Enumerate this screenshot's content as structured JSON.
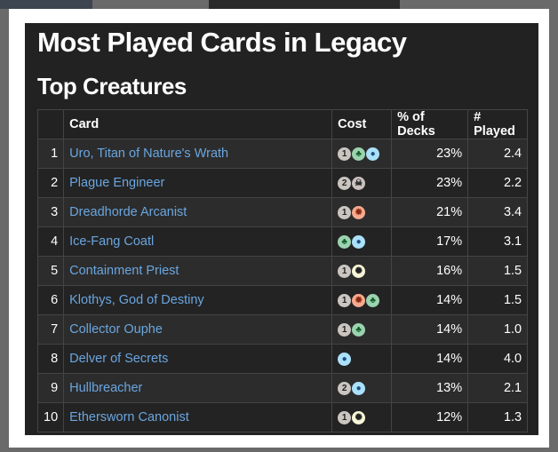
{
  "title": "Most Played Cards in Legacy",
  "subtitle": "Top Creatures",
  "headers": {
    "rank": "",
    "card": "Card",
    "cost": "Cost",
    "pct": "% of Decks",
    "played": "# Played"
  },
  "mana_colors": {
    "generic": "#cac5c0",
    "G": "#9bd3ae",
    "U": "#aae0fa",
    "R": "#f9aa8f",
    "W": "#f8f6d8",
    "B": "#cbc2bf"
  },
  "rows": [
    {
      "rank": "1",
      "card": "Uro, Titan of Nature's Wrath",
      "cost": [
        "1",
        "G",
        "U"
      ],
      "pct": "23%",
      "played": "2.4"
    },
    {
      "rank": "2",
      "card": "Plague Engineer",
      "cost": [
        "2",
        "B"
      ],
      "pct": "23%",
      "played": "2.2"
    },
    {
      "rank": "3",
      "card": "Dreadhorde Arcanist",
      "cost": [
        "1",
        "R"
      ],
      "pct": "21%",
      "played": "3.4"
    },
    {
      "rank": "4",
      "card": "Ice-Fang Coatl",
      "cost": [
        "G",
        "U"
      ],
      "pct": "17%",
      "played": "3.1"
    },
    {
      "rank": "5",
      "card": "Containment Priest",
      "cost": [
        "1",
        "W"
      ],
      "pct": "16%",
      "played": "1.5"
    },
    {
      "rank": "6",
      "card": "Klothys, God of Destiny",
      "cost": [
        "1",
        "R",
        "G"
      ],
      "pct": "14%",
      "played": "1.5"
    },
    {
      "rank": "7",
      "card": "Collector Ouphe",
      "cost": [
        "1",
        "G"
      ],
      "pct": "14%",
      "played": "1.0"
    },
    {
      "rank": "8",
      "card": "Delver of Secrets",
      "cost": [
        "U"
      ],
      "pct": "14%",
      "played": "4.0"
    },
    {
      "rank": "9",
      "card": "Hullbreacher",
      "cost": [
        "2",
        "U"
      ],
      "pct": "13%",
      "played": "2.1"
    },
    {
      "rank": "10",
      "card": "Ethersworn Canonist",
      "cost": [
        "1",
        "W"
      ],
      "pct": "12%",
      "played": "1.3"
    }
  ]
}
